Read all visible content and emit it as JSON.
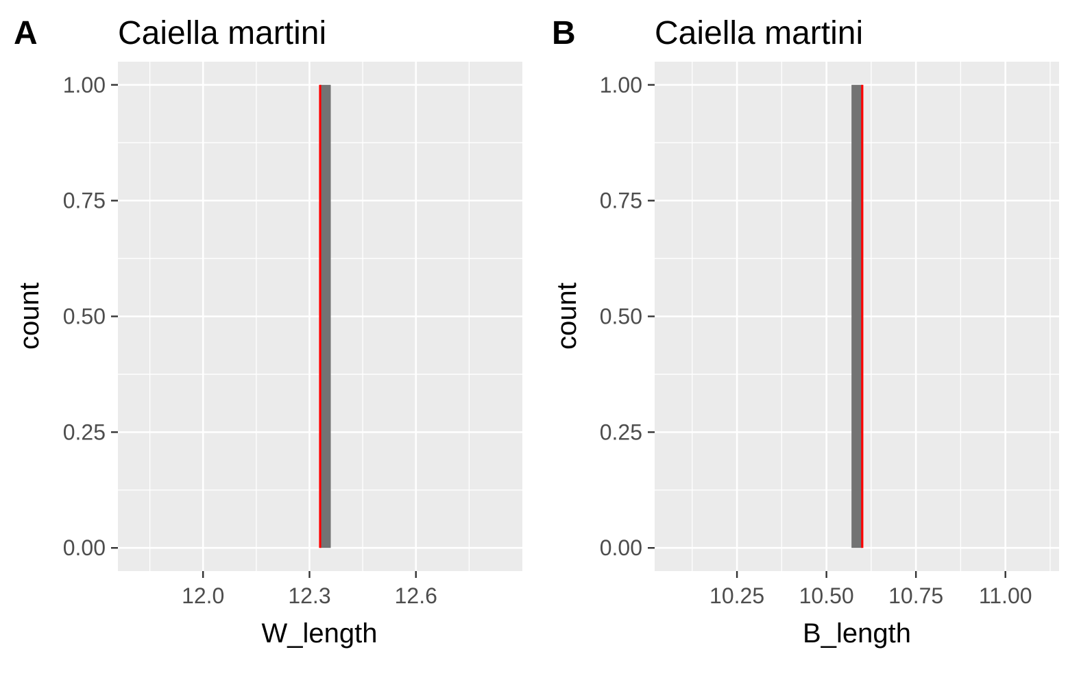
{
  "chart_data": [
    {
      "type": "bar",
      "panel_tag": "A",
      "title": "Caiella martini",
      "xlabel": "W_length",
      "ylabel": "count",
      "xlim": [
        11.76,
        12.9
      ],
      "ylim": [
        -0.05,
        1.05
      ],
      "x_ticks": [
        12.0,
        12.3,
        12.6
      ],
      "x_tick_labels": [
        "12.0",
        "12.3",
        "12.6"
      ],
      "y_ticks": [
        0,
        0.25,
        0.5,
        0.75,
        1.0
      ],
      "y_tick_labels": [
        "0.00",
        "0.25",
        "0.50",
        "0.75",
        "1.00"
      ],
      "bars": [
        {
          "xmin": 12.33,
          "xmax": 12.36,
          "count": 1
        }
      ],
      "vline": {
        "x": 12.33,
        "color": "#ff0000"
      },
      "bar_color": "#737373",
      "panel_bg": "#ebebeb",
      "grid": true
    },
    {
      "type": "bar",
      "panel_tag": "B",
      "title": "Caiella martini",
      "xlabel": "B_length",
      "ylabel": "count",
      "xlim": [
        10.02,
        11.15
      ],
      "ylim": [
        -0.05,
        1.05
      ],
      "x_ticks": [
        10.25,
        10.5,
        10.75,
        11.0
      ],
      "x_tick_labels": [
        "10.25",
        "10.50",
        "10.75",
        "11.00"
      ],
      "y_ticks": [
        0,
        0.25,
        0.5,
        0.75,
        1.0
      ],
      "y_tick_labels": [
        "0.00",
        "0.25",
        "0.50",
        "0.75",
        "1.00"
      ],
      "bars": [
        {
          "xmin": 10.57,
          "xmax": 10.6,
          "count": 1
        }
      ],
      "vline": {
        "x": 10.6,
        "color": "#ff0000"
      },
      "bar_color": "#737373",
      "panel_bg": "#ebebeb",
      "grid": true
    }
  ]
}
